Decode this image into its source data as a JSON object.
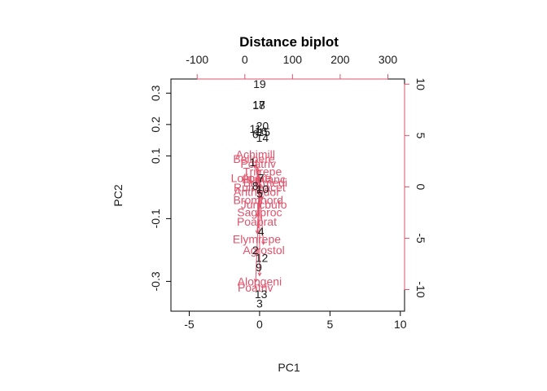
{
  "chart_data": {
    "type": "scatter",
    "title": "Distance biplot",
    "xlabel": "PC1",
    "ylabel": "PC2",
    "xlim": [
      -6.3,
      10.3
    ],
    "ylim": [
      -0.395,
      0.345
    ],
    "xticks": [
      -5,
      0,
      5,
      10
    ],
    "yticks": [
      -0.3,
      -0.1,
      0.1,
      0.2,
      0.3
    ],
    "xtick_labels": [
      "-5",
      "0",
      "5",
      "10"
    ],
    "ytick_labels": [
      "-0.3",
      "-0.1",
      "0.1",
      "0.2",
      "0.3"
    ],
    "top_axis": {
      "lim": [
        -155,
        335
      ],
      "ticks": [
        -100,
        0,
        100,
        200,
        300
      ],
      "labels": [
        "-100",
        "0",
        "100",
        "200",
        "300"
      ],
      "color": "#DF536B"
    },
    "right_axis": {
      "lim": [
        -12.1,
        10.5
      ],
      "ticks": [
        -10,
        -5,
        0,
        5,
        10
      ],
      "labels": [
        "-10",
        "-5",
        "0",
        "5",
        "10"
      ],
      "color": "#DF536B"
    },
    "grid": false,
    "site_color": "#000000",
    "species_color": "#DF536B",
    "sites": [
      {
        "label": "19",
        "x": 0.0,
        "y": 0.33
      },
      {
        "label": "17",
        "x": -0.05,
        "y": 0.263
      },
      {
        "label": "18",
        "x": -0.05,
        "y": 0.262
      },
      {
        "label": "20",
        "x": 0.2,
        "y": 0.196
      },
      {
        "label": "11",
        "x": -0.3,
        "y": 0.186
      },
      {
        "label": "16",
        "x": 0.1,
        "y": 0.179
      },
      {
        "label": "15",
        "x": 0.3,
        "y": 0.176
      },
      {
        "label": "6",
        "x": -0.3,
        "y": 0.17
      },
      {
        "label": "14",
        "x": 0.2,
        "y": 0.158
      },
      {
        "label": "1",
        "x": -0.5,
        "y": 0.08
      },
      {
        "label": "7",
        "x": 0.1,
        "y": 0.03
      },
      {
        "label": "8",
        "x": -0.3,
        "y": 0.005
      },
      {
        "label": "10",
        "x": 0.2,
        "y": -0.005
      },
      {
        "label": "5",
        "x": 0.0,
        "y": -0.02
      },
      {
        "label": "4",
        "x": 0.1,
        "y": -0.14
      },
      {
        "label": "2",
        "x": -0.3,
        "y": -0.2
      },
      {
        "label": "12",
        "x": 0.15,
        "y": -0.225
      },
      {
        "label": "9",
        "x": -0.05,
        "y": -0.255
      },
      {
        "label": "13",
        "x": 0.1,
        "y": -0.34
      },
      {
        "label": "3",
        "x": 0.0,
        "y": -0.37
      }
    ],
    "species": [
      {
        "label": "Achimill",
        "x": -0.3,
        "y": 0.105
      },
      {
        "label": "Bellpere",
        "x": -0.4,
        "y": 0.09
      },
      {
        "label": "Poatriv",
        "x": -0.1,
        "y": 0.075
      },
      {
        "label": "Trifrepe",
        "x": 0.2,
        "y": 0.05
      },
      {
        "label": "Lolipere",
        "x": -0.6,
        "y": 0.03
      },
      {
        "label": "Planlanc",
        "x": 0.3,
        "y": 0.025
      },
      {
        "label": "Brizmedi",
        "x": 0.4,
        "y": 0.015
      },
      {
        "label": "Rumeacet",
        "x": 0.0,
        "y": 0.0
      },
      {
        "label": "Anthodor",
        "x": -0.2,
        "y": -0.015
      },
      {
        "label": "Bromhord",
        "x": -0.1,
        "y": -0.04
      },
      {
        "label": "Juncbufo",
        "x": 0.3,
        "y": -0.055
      },
      {
        "label": "Sagiproc",
        "x": 0.0,
        "y": -0.08
      },
      {
        "label": "Poaprat",
        "x": -0.2,
        "y": -0.11
      },
      {
        "label": "Elymrepe",
        "x": -0.2,
        "y": -0.165
      },
      {
        "label": "Agrostol",
        "x": 0.3,
        "y": -0.2
      },
      {
        "label": "Alopgeni",
        "x": 0.0,
        "y": -0.3
      },
      {
        "label": "Poatriv",
        "x": -0.3,
        "y": -0.32
      }
    ]
  }
}
